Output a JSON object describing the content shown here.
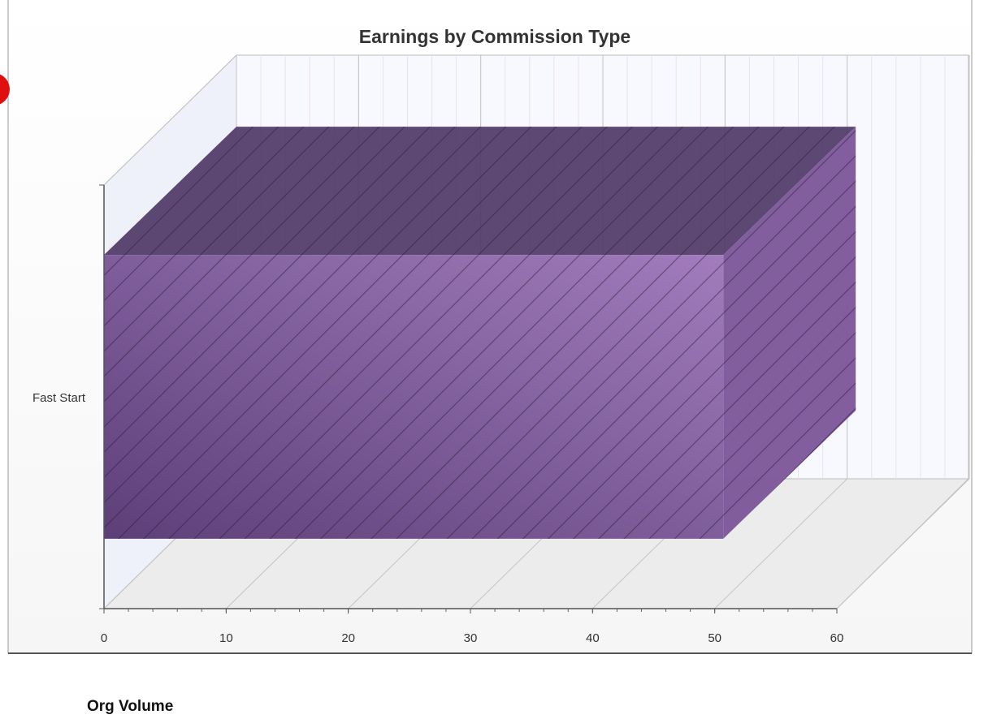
{
  "chart_data": {
    "type": "bar",
    "orientation": "horizontal",
    "title": "Earnings by Commission Type",
    "categories": [
      "Fast Start"
    ],
    "values": [
      50.7
    ],
    "color": "#7b559a",
    "xlim": [
      0,
      60
    ],
    "xticks": [
      0,
      10,
      20,
      30,
      40,
      50,
      60
    ],
    "grid": true
  },
  "section_label": "Org Volume"
}
